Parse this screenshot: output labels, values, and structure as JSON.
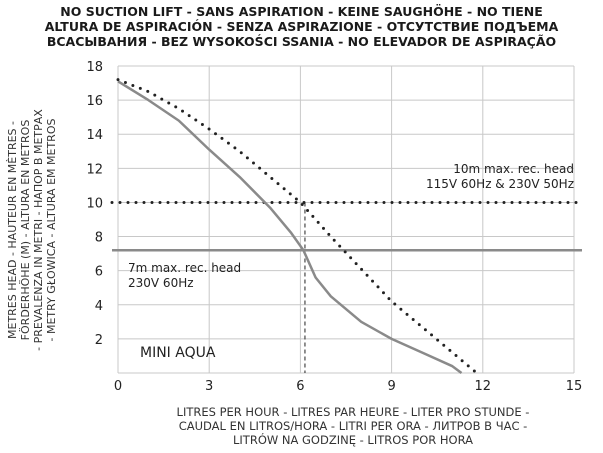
{
  "title_lines": [
    "NO SUCTION LIFT - SANS ASPIRATION - KEINE SAUGHÖHE - NO TIENE",
    "ALTURA DE ASPIRACIÓN - SENZA ASPIRAZIONE - ОТСУТСТВИЕ ПОДЪЕМА",
    "ВСАСЫВАНИЯ - BEZ WYSOKOŚCI SSANIA - NO ELEVADOR DE ASPIRAÇÃO"
  ],
  "ylabel_lines": [
    "METRES HEAD - HAUTEUR EN MÈTRES -",
    "FÖRDERHÖHE (M) - ALTURA EN METROS",
    "- PREVALENZA IN METRI - НАПОР В МЕТРАХ",
    "- METRY GŁOWICA - ALTURA EM METROS"
  ],
  "xlabel_lines": [
    "LITRES PER HOUR - LITRES PAR HEURE - LITER PRO STUNDE -",
    "CAUDAL EN LITROS/HORA - LITRI PER ORA - ЛИТРОВ В ЧАС -",
    "LITRÓW NA GODZINĘ - LITROS POR HORA"
  ],
  "annotations": {
    "ref_10m_line1": "10m max. rec. head",
    "ref_10m_line2": "115V 60Hz & 230V 50Hz",
    "ref_7m_line1": "7m max. rec. head",
    "ref_7m_line2": "230V 60Hz",
    "product": "MINI AQUA"
  },
  "chart_data": {
    "type": "line",
    "xlim": [
      0,
      15
    ],
    "ylim": [
      0,
      18
    ],
    "x_ticks": [
      "0",
      "3",
      "6",
      "9",
      "12",
      "15"
    ],
    "y_ticks": [
      "2",
      "4",
      "6",
      "8",
      "10",
      "12",
      "14",
      "16",
      "18"
    ],
    "grid": true,
    "series": [
      {
        "style": "solid",
        "color": "#8a8a8a",
        "points": [
          [
            0,
            17.1
          ],
          [
            1,
            16.0
          ],
          [
            2,
            14.8
          ],
          [
            3,
            13.1
          ],
          [
            4,
            11.5
          ],
          [
            5,
            9.7
          ],
          [
            5.7,
            8.2
          ],
          [
            6.1,
            7.2
          ],
          [
            6.5,
            5.6
          ],
          [
            7,
            4.5
          ],
          [
            8,
            3.0
          ],
          [
            9,
            2.0
          ],
          [
            10,
            1.2
          ],
          [
            11,
            0.4
          ],
          [
            11.3,
            0.0
          ]
        ]
      },
      {
        "style": "dotted",
        "color": "#222222",
        "points": [
          [
            0,
            17.2
          ],
          [
            1,
            16.5
          ],
          [
            2,
            15.5
          ],
          [
            3,
            14.3
          ],
          [
            4,
            13.0
          ],
          [
            5,
            11.5
          ],
          [
            6,
            10.0
          ],
          [
            7,
            8.0
          ],
          [
            8,
            6.1
          ],
          [
            9,
            4.2
          ],
          [
            10,
            2.7
          ],
          [
            11,
            1.2
          ],
          [
            11.8,
            0.0
          ]
        ]
      }
    ],
    "reference_lines": [
      {
        "y": 10,
        "style": "dotted",
        "color": "#222222"
      },
      {
        "y": 7.2,
        "style": "solid",
        "color": "#8a8a8a"
      }
    ],
    "marker_lines": [
      {
        "x": 6.15,
        "y_top": 10,
        "style": "dashed",
        "color": "#222222"
      }
    ]
  }
}
